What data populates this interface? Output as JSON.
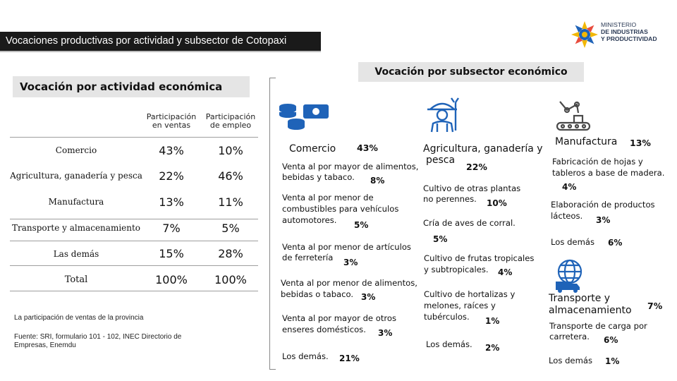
{
  "header": {
    "title": "Vocaciones productivas por actividad y subsector de Cotopaxi",
    "logo_line1": "MINISTERIO",
    "logo_line2": "DE INDUSTRIAS",
    "logo_line3": "Y PRODUCTIVIDAD"
  },
  "left": {
    "heading": "Vocación por actividad económica",
    "col1_header": "Participación en ventas",
    "col2_header": "Participación de empleo",
    "rows": [
      {
        "label": "Comercio",
        "ventas": "43%",
        "empleo": "10%"
      },
      {
        "label": "Agricultura, ganadería y pesca",
        "ventas": "22%",
        "empleo": "46%"
      },
      {
        "label": "Manufactura",
        "ventas": "13%",
        "empleo": "11%"
      },
      {
        "label": "Transporte y almacenamiento",
        "ventas": "7%",
        "empleo": "5%"
      },
      {
        "label": "Las demás",
        "ventas": "15%",
        "empleo": "28%"
      },
      {
        "label": "Total",
        "ventas": "100%",
        "empleo": "100%"
      }
    ],
    "note": "La participación de ventas de la provincia",
    "source_label": "Fuente:",
    "source_text": "SRI, formulario 101 - 102, INEC Directorio de Empresas, Enemdu"
  },
  "right": {
    "heading": "Vocación por subsector económico",
    "comercio": {
      "name": "Comercio",
      "pct": "43%",
      "items": [
        {
          "l1": "Venta al por mayor de alimentos,",
          "l2": "bebidas y tabaco.",
          "pct": "8%"
        },
        {
          "l1": "Venta al por menor de",
          "l2": "combustibles para vehículos",
          "l3": "automotores.",
          "pct": "5%"
        },
        {
          "l1": "Venta al por menor de artículos",
          "l2": "de ferretería",
          "pct": "3%"
        },
        {
          "l1": "Venta al por menor de alimentos,",
          "l2": "bebidas o tabaco.",
          "pct": "3%"
        },
        {
          "l1": "Venta al por mayor de otros",
          "l2": "enseres domésticos.",
          "pct": "3%"
        },
        {
          "l1": "Los demás.",
          "pct": "21%"
        }
      ]
    },
    "agricultura": {
      "name_l1": "Agricultura, ganadería y",
      "name_l2": "pesca",
      "pct": "22%",
      "items": [
        {
          "l1": "Cultivo de otras plantas",
          "l2": "no perennes.",
          "pct": "10%"
        },
        {
          "l1": "Cría de aves de corral.",
          "pct": "5%"
        },
        {
          "l1": "Cultivo de frutas tropicales",
          "l2": "y subtropicales.",
          "pct": "4%"
        },
        {
          "l1": "Cultivo de hortalizas y",
          "l2": "melones, raíces y",
          "l3": "tubérculos.",
          "pct": "1%"
        },
        {
          "l1": "Los demás.",
          "pct": "2%"
        }
      ]
    },
    "manufactura": {
      "name": "Manufactura",
      "pct": "13%",
      "items": [
        {
          "l1": "Fabricación de hojas y",
          "l2": "tableros a base de madera.",
          "pct": "4%"
        },
        {
          "l1": "Elaboración de productos",
          "l2": "lácteos.",
          "pct": "3%"
        },
        {
          "l1": "Los demás",
          "pct": "6%"
        }
      ]
    },
    "transporte": {
      "name_l1": "Transporte y",
      "name_l2": "almacenamiento",
      "pct": "7%",
      "items": [
        {
          "l1": "Transporte de carga por",
          "l2": "carretera.",
          "pct": "6%"
        },
        {
          "l1": "Los demás",
          "pct": "1%"
        }
      ]
    }
  },
  "colors": {
    "accent": "#1f63b8",
    "header_bg": "#1a1a1a",
    "box_bg": "#e5e5e5"
  }
}
